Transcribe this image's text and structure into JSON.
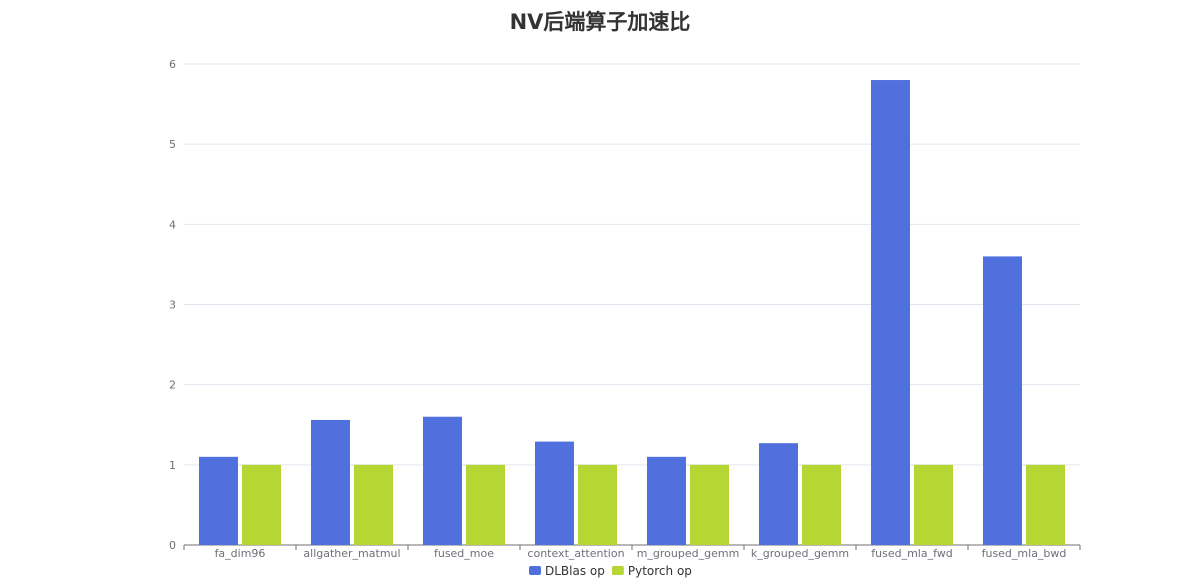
{
  "chart_data": {
    "type": "bar",
    "title": "NV后端算子加速比",
    "categories": [
      "fa_dim96",
      "allgather_matmul",
      "fused_moe",
      "context_attention",
      "m_grouped_gemm",
      "k_grouped_gemm",
      "fused_mla_fwd",
      "fused_mla_bwd"
    ],
    "series": [
      {
        "name": "DLBlas op",
        "color": "#5070dd",
        "values": [
          1.1,
          1.56,
          1.6,
          1.29,
          1.1,
          1.27,
          5.8,
          3.6
        ]
      },
      {
        "name": "Pytorch op",
        "color": "#b6d634",
        "values": [
          1,
          1,
          1,
          1,
          1,
          1,
          1,
          1
        ]
      }
    ],
    "ylim": [
      0,
      6
    ],
    "yticks": [
      0,
      1,
      2,
      3,
      4,
      5,
      6
    ],
    "xlabel": "",
    "ylabel": "",
    "grid": true,
    "legend_position": "bottom-center"
  }
}
